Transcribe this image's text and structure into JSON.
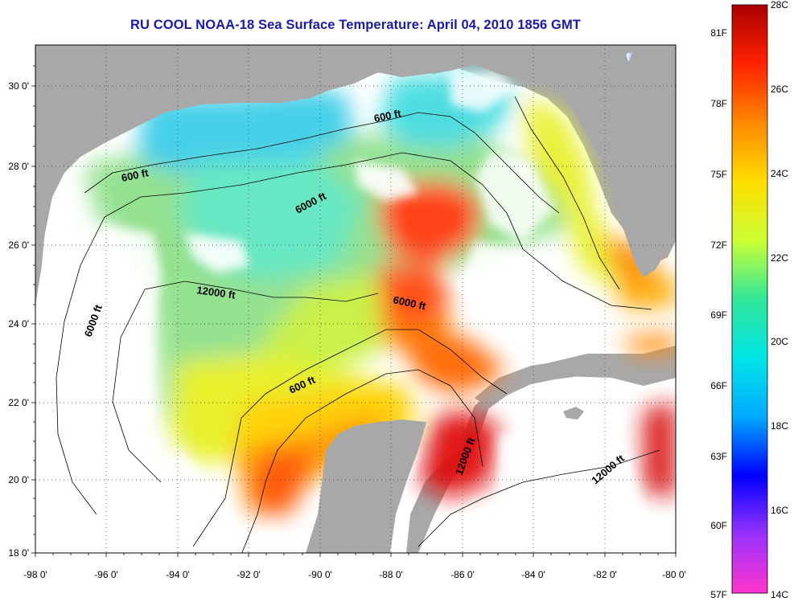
{
  "title": "RU COOL  NOAA-18  Sea Surface Temperature:  April 04, 2010 1856 GMT",
  "map": {
    "lon_range": [
      -98,
      -80
    ],
    "lat_range": [
      18,
      31
    ],
    "lon_ticks": [
      "-98 0'",
      "-96 0'",
      "-94 0'",
      "-92 0'",
      "-90 0'",
      "-88 0'",
      "-86 0'",
      "-84 0'",
      "-82 0'",
      "-80 0'"
    ],
    "lat_ticks": [
      "30 0'",
      "28 0'",
      "26 0'",
      "24 0'",
      "22 0'",
      "20 0'",
      "18 0'"
    ],
    "grid": "dotted",
    "colors": {
      "land": "#a8a8a8",
      "no_data": "#ffffff",
      "contour": "#000000"
    },
    "contour_labels": [
      "600 ft",
      "600 ft",
      "6000 ft",
      "12000 ft",
      "6000 ft",
      "6000 ft",
      "600 ft",
      "12000 ft",
      "12000 ft"
    ]
  },
  "colorbar": {
    "fahrenheit_labels": [
      "81F",
      "78F",
      "75F",
      "72F",
      "69F",
      "66F",
      "63F",
      "60F",
      "57F"
    ],
    "celsius_labels": [
      "28C",
      "26C",
      "24C",
      "22C",
      "20C",
      "18C",
      "16C",
      "14C"
    ],
    "range_c": [
      14,
      28
    ],
    "stops": [
      "#ff33cc",
      "#9933ff",
      "#0000ff",
      "#00aaff",
      "#00e5e5",
      "#33e699",
      "#ccff33",
      "#ffdd00",
      "#ff8800",
      "#ff2200",
      "#aa0000"
    ]
  }
}
